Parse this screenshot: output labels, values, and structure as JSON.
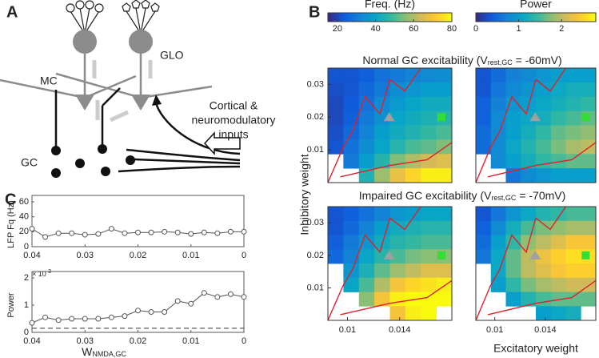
{
  "panels": {
    "a": "A",
    "b": "B",
    "c": "C"
  },
  "diagram": {
    "glo": "GLO",
    "mc": "MC",
    "gc": "GC",
    "inputs": [
      "Cortical &",
      "neuromodulatory",
      "inputs"
    ]
  },
  "chart_data": [
    {
      "type": "heatmap",
      "subtitle": {
        "pre": "Normal GC excitability (V",
        "sub": "rest,GC",
        "post": " = -60mV)"
      },
      "ylabel": "Inhibitory weight",
      "colorbar": {
        "label": "Freq. (Hz)",
        "clim": [
          15,
          80
        ],
        "ticks": [
          20,
          40,
          60,
          80
        ]
      },
      "xlim": [
        0.0085,
        0.018
      ],
      "ylim": [
        0,
        0.035
      ],
      "yticks": [
        0.01,
        0.02,
        0.03
      ],
      "values": [
        [
          22,
          22,
          24,
          28,
          30,
          32,
          33,
          34
        ],
        [
          21,
          22,
          26,
          30,
          34,
          36,
          38,
          38
        ],
        [
          20,
          23,
          28,
          33,
          37,
          40,
          42,
          42
        ],
        [
          20,
          24,
          30,
          35,
          40,
          42,
          44,
          46
        ],
        [
          21,
          26,
          32,
          38,
          42,
          45,
          48,
          50
        ],
        [
          22,
          28,
          34,
          40,
          46,
          50,
          52,
          55
        ],
        [
          null,
          30,
          38,
          46,
          55,
          60,
          64,
          66
        ],
        [
          null,
          null,
          45,
          58,
          68,
          74,
          78,
          78
        ]
      ],
      "markers": [
        {
          "x": 0.0132,
          "y": 0.02,
          "shape": "triangle",
          "color": "#a0a0a0"
        },
        {
          "x": 0.0172,
          "y": 0.02,
          "shape": "square",
          "color": "#33dd33"
        }
      ]
    },
    {
      "type": "heatmap",
      "colorbar": {
        "label": "Power",
        "clim": [
          0,
          2.8
        ],
        "ticks": [
          0,
          1,
          2
        ]
      },
      "xlim": [
        0.0085,
        0.018
      ],
      "ylim": [
        0,
        0.035
      ],
      "values": [
        [
          0.3,
          0.5,
          0.7,
          0.8,
          0.9,
          1.0,
          1.0,
          1.0
        ],
        [
          0.3,
          0.6,
          0.8,
          0.9,
          1.0,
          1.1,
          1.2,
          1.2
        ],
        [
          0.4,
          0.7,
          0.9,
          1.0,
          1.1,
          1.2,
          1.3,
          1.4
        ],
        [
          0.4,
          0.8,
          1.0,
          1.1,
          1.2,
          1.4,
          1.5,
          1.6
        ],
        [
          0.5,
          0.8,
          1.0,
          1.2,
          1.4,
          1.6,
          1.7,
          1.8
        ],
        [
          0.5,
          0.8,
          1.1,
          1.3,
          1.5,
          1.7,
          1.9,
          2.0
        ],
        [
          null,
          0.8,
          1.0,
          1.2,
          1.4,
          1.5,
          1.6,
          1.6
        ],
        [
          null,
          null,
          0.6,
          0.8,
          0.9,
          1.0,
          1.0,
          1.0
        ]
      ],
      "markers": [
        {
          "x": 0.0132,
          "y": 0.02,
          "shape": "triangle",
          "color": "#a0a0a0"
        },
        {
          "x": 0.0172,
          "y": 0.02,
          "shape": "square",
          "color": "#33dd33"
        }
      ]
    },
    {
      "type": "heatmap",
      "subtitle": {
        "pre": "Impaired GC excitability (V",
        "sub": "rest,GC",
        "post": " = -70mV)"
      },
      "xlim": [
        0.0085,
        0.018
      ],
      "ylim": [
        0,
        0.035
      ],
      "yticks": [
        0.01,
        0.02,
        0.03
      ],
      "xticks": [
        0.01,
        0.014
      ],
      "values": [
        [
          22,
          24,
          28,
          32,
          36,
          38,
          40,
          40
        ],
        [
          22,
          26,
          32,
          38,
          42,
          44,
          46,
          46
        ],
        [
          24,
          30,
          36,
          42,
          46,
          48,
          50,
          50
        ],
        [
          26,
          32,
          40,
          46,
          50,
          54,
          56,
          56
        ],
        [
          null,
          36,
          44,
          52,
          58,
          62,
          66,
          66
        ],
        [
          null,
          40,
          50,
          60,
          70,
          74,
          76,
          78
        ],
        [
          null,
          null,
          56,
          70,
          78,
          80,
          80,
          80
        ],
        [
          null,
          null,
          null,
          null,
          70,
          78,
          80,
          null
        ]
      ],
      "markers": [
        {
          "x": 0.0132,
          "y": 0.02,
          "shape": "triangle",
          "color": "#a0a0a0"
        },
        {
          "x": 0.0172,
          "y": 0.02,
          "shape": "square",
          "color": "#33dd33"
        }
      ]
    },
    {
      "type": "heatmap",
      "xlabel": "Excitatory weight",
      "xlim": [
        0.0085,
        0.018
      ],
      "ylim": [
        0,
        0.035
      ],
      "xticks": [
        0.01,
        0.014
      ],
      "values": [
        [
          0.3,
          0.6,
          0.9,
          1.1,
          1.3,
          1.4,
          1.5,
          1.5
        ],
        [
          0.4,
          0.8,
          1.2,
          1.5,
          1.7,
          1.8,
          1.9,
          1.9
        ],
        [
          0.5,
          1.0,
          1.4,
          1.8,
          2.0,
          2.2,
          2.4,
          2.4
        ],
        [
          0.6,
          1.1,
          1.6,
          2.0,
          2.3,
          2.5,
          2.6,
          2.6
        ],
        [
          null,
          1.1,
          1.6,
          2.0,
          2.2,
          2.4,
          2.5,
          2.5
        ],
        [
          null,
          1.0,
          1.4,
          1.7,
          1.9,
          2.0,
          2.1,
          2.1
        ],
        [
          null,
          null,
          1.0,
          1.3,
          1.5,
          1.6,
          1.6,
          1.6
        ],
        [
          null,
          null,
          null,
          null,
          1.0,
          1.1,
          1.2,
          null
        ]
      ],
      "markers": [
        {
          "x": 0.0132,
          "y": 0.02,
          "shape": "triangle",
          "color": "#a0a0a0"
        },
        {
          "x": 0.0172,
          "y": 0.02,
          "shape": "square",
          "color": "#33dd33"
        }
      ]
    },
    {
      "type": "line",
      "ylabel": "LFP Fq (Hz)",
      "color": "#555555",
      "x": [
        0.04,
        0.0375,
        0.035,
        0.0325,
        0.03,
        0.0275,
        0.025,
        0.0225,
        0.02,
        0.0175,
        0.015,
        0.0125,
        0.01,
        0.0075,
        0.005,
        0.0025,
        0
      ],
      "values": [
        24,
        13,
        18,
        18,
        16,
        17,
        24,
        18,
        19,
        19,
        20,
        19,
        17,
        19,
        18,
        20,
        20
      ],
      "xlim": [
        0.04,
        0
      ],
      "xticks": [
        0.04,
        0.03,
        0.02,
        0.01,
        0
      ],
      "ylim": [
        0,
        60
      ],
      "yticks": [
        0,
        20,
        40,
        60
      ]
    },
    {
      "type": "line",
      "ylabel": "Power",
      "xlabel": {
        "main": "W",
        "sub": "NMDA,GC"
      },
      "yscale": {
        "base": "× 10",
        "exp": "-3"
      },
      "color": "#555555",
      "x": [
        0.04,
        0.0375,
        0.035,
        0.0325,
        0.03,
        0.0275,
        0.025,
        0.0225,
        0.02,
        0.0175,
        0.015,
        0.0125,
        0.01,
        0.0075,
        0.005,
        0.0025,
        0
      ],
      "values": [
        0.35,
        0.55,
        0.45,
        0.5,
        0.5,
        0.5,
        0.55,
        0.6,
        0.8,
        0.75,
        0.75,
        1.15,
        1.05,
        1.45,
        1.3,
        1.4,
        1.3
      ],
      "hline": {
        "value": 0.15,
        "style": "dashed"
      },
      "xlim": [
        0.04,
        0
      ],
      "xticks": [
        0.04,
        0.03,
        0.02,
        0.01,
        0
      ],
      "ylim": [
        0,
        2
      ],
      "yticks": [
        0,
        1,
        2
      ]
    }
  ]
}
